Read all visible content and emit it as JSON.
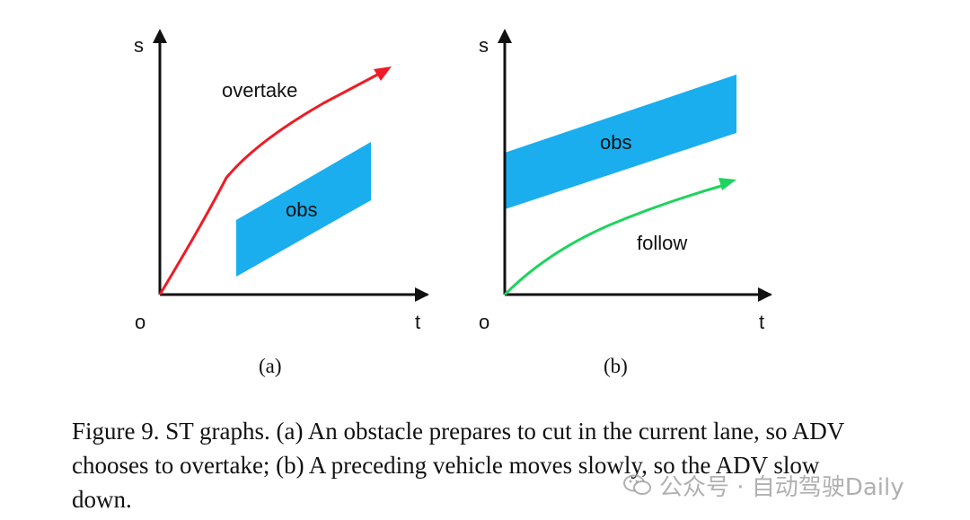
{
  "colors": {
    "obstacle": "#1aaeee",
    "overtake_arrow": "#ee1c25",
    "follow_arrow": "#1fd35f",
    "axis": "#111111"
  },
  "panel_a": {
    "y_axis_label": "s",
    "x_axis_label": "t",
    "origin_label": "o",
    "trajectory_label": "overtake",
    "obstacle_label": "obs",
    "sub_label": "(a)"
  },
  "panel_b": {
    "y_axis_label": "s",
    "x_axis_label": "t",
    "origin_label": "o",
    "trajectory_label": "follow",
    "obstacle_label": "obs",
    "sub_label": "(b)"
  },
  "caption": "Figure 9. ST graphs. (a) An obstacle prepares to cut in the current lane, so ADV chooses to overtake; (b) A preceding vehicle moves slowly, so the ADV slow down.",
  "watermark": {
    "icon": "wechat-icon",
    "text": "公众号 · 自动驾驶Daily"
  }
}
